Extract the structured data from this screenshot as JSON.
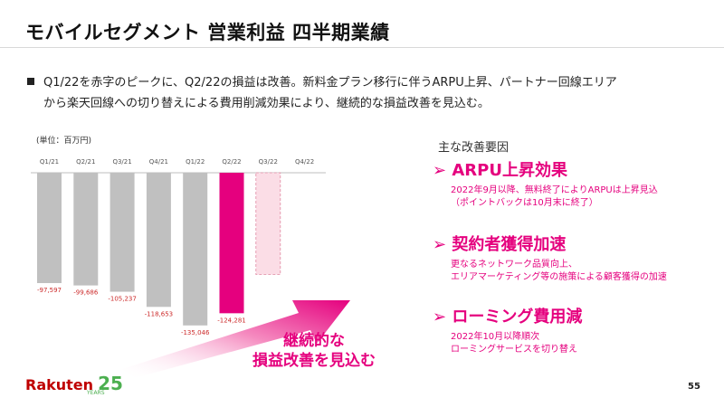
{
  "slide": {
    "title": "モバイルセグメント 営業利益 四半期業績",
    "bullet_line1": "Q1/22を赤字のピークに、Q2/22の損益は改善。新料金プラン移行に伴うARPU上昇、パートナー回線エリア",
    "bullet_line2": "から楽天回線への切り替えによる費用削減効果により、継続的な損益改善を見込む。",
    "unit_label": "(単位：百万円)",
    "callout_line1": "継続的な",
    "callout_line2": "損益改善を見込む",
    "page_number": "55",
    "logo": {
      "brand": "Rakuten",
      "number": "25",
      "years": "YEARS"
    }
  },
  "factors": {
    "heading": "主な改善要因",
    "chevron": "➢",
    "items": [
      {
        "title": "ARPU上昇効果",
        "lines": [
          "2022年9月以降、無料終了によりARPUは上昇見込",
          "（ポイントバックは10月末に終了）"
        ]
      },
      {
        "title": "契約者獲得加速",
        "lines": [
          "更なるネットワーク品質向上、",
          "エリアマーケティング等の施策による顧客獲得の加速"
        ]
      },
      {
        "title": "ローミング費用減",
        "lines": [
          "2022年10月以降順次",
          "ローミングサービスを切り替え"
        ]
      }
    ]
  },
  "colors": {
    "accent": "#e5007e",
    "bar_gray": "#c0c0c0",
    "bar_forecast": "#fbdde6",
    "label_red": "#cc2a2a"
  },
  "chart_data": {
    "type": "bar",
    "categories": [
      "Q1/21",
      "Q2/21",
      "Q3/21",
      "Q4/21",
      "Q1/22",
      "Q2/22",
      "Q3/22",
      "Q4/22"
    ],
    "values": [
      -97597,
      -99686,
      -105237,
      -118653,
      -135046,
      -124281,
      null,
      null
    ],
    "value_labels": [
      "-97,597",
      "-99,686",
      "-105,237",
      "-118,653",
      "-135,046",
      "-124,281",
      "",
      ""
    ],
    "forecast": {
      "category": "Q3/22",
      "value": -90000,
      "style": "dashed"
    },
    "highlight": "Q2/22",
    "ylabel": "",
    "ylim": [
      -150000,
      0
    ]
  }
}
